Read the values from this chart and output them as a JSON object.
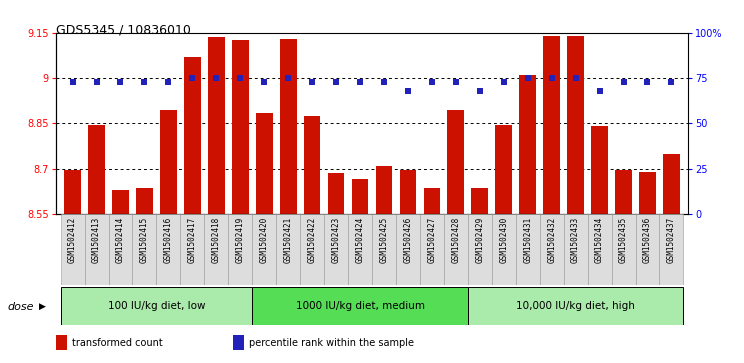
{
  "title": "GDS5345 / 10836010",
  "samples": [
    "GSM1502412",
    "GSM1502413",
    "GSM1502414",
    "GSM1502415",
    "GSM1502416",
    "GSM1502417",
    "GSM1502418",
    "GSM1502419",
    "GSM1502420",
    "GSM1502421",
    "GSM1502422",
    "GSM1502423",
    "GSM1502424",
    "GSM1502425",
    "GSM1502426",
    "GSM1502427",
    "GSM1502428",
    "GSM1502429",
    "GSM1502430",
    "GSM1502431",
    "GSM1502432",
    "GSM1502433",
    "GSM1502434",
    "GSM1502435",
    "GSM1502436",
    "GSM1502437"
  ],
  "bar_values": [
    8.695,
    8.845,
    8.63,
    8.635,
    8.895,
    9.07,
    9.135,
    9.125,
    8.885,
    9.13,
    8.875,
    8.685,
    8.665,
    8.71,
    8.695,
    8.635,
    8.895,
    8.635,
    8.845,
    9.01,
    9.14,
    9.14,
    8.84,
    8.695,
    8.69,
    8.75
  ],
  "percentile_values": [
    73,
    73,
    73,
    73,
    73,
    75,
    75,
    75,
    73,
    75,
    73,
    73,
    73,
    73,
    68,
    73,
    73,
    68,
    73,
    75,
    75,
    75,
    68,
    73,
    73,
    73
  ],
  "groups": [
    {
      "label": "100 IU/kg diet, low",
      "start": 0,
      "end": 8,
      "color": "#aaeaaa"
    },
    {
      "label": "1000 IU/kg diet, medium",
      "start": 8,
      "end": 17,
      "color": "#55dd55"
    },
    {
      "label": "10,000 IU/kg diet, high",
      "start": 17,
      "end": 26,
      "color": "#aaeaaa"
    }
  ],
  "bar_color": "#CC1100",
  "dot_color": "#2222BB",
  "ymin": 8.55,
  "ymax": 9.15,
  "yticks": [
    8.55,
    8.7,
    8.85,
    9.0,
    9.15
  ],
  "ytick_labels": [
    "8.55",
    "8.7",
    "8.85",
    "9",
    "9.15"
  ],
  "right_yticks": [
    0,
    25,
    50,
    75,
    100
  ],
  "right_ytick_labels": [
    "0",
    "25",
    "50",
    "75",
    "100%"
  ],
  "grid_values": [
    8.7,
    8.85,
    9.0
  ],
  "legend_items": [
    {
      "label": "transformed count",
      "color": "#CC1100"
    },
    {
      "label": "percentile rank within the sample",
      "color": "#2222BB"
    }
  ],
  "dose_label": "dose",
  "xtick_bg_color": "#dddddd",
  "xtick_border_color": "#999999"
}
